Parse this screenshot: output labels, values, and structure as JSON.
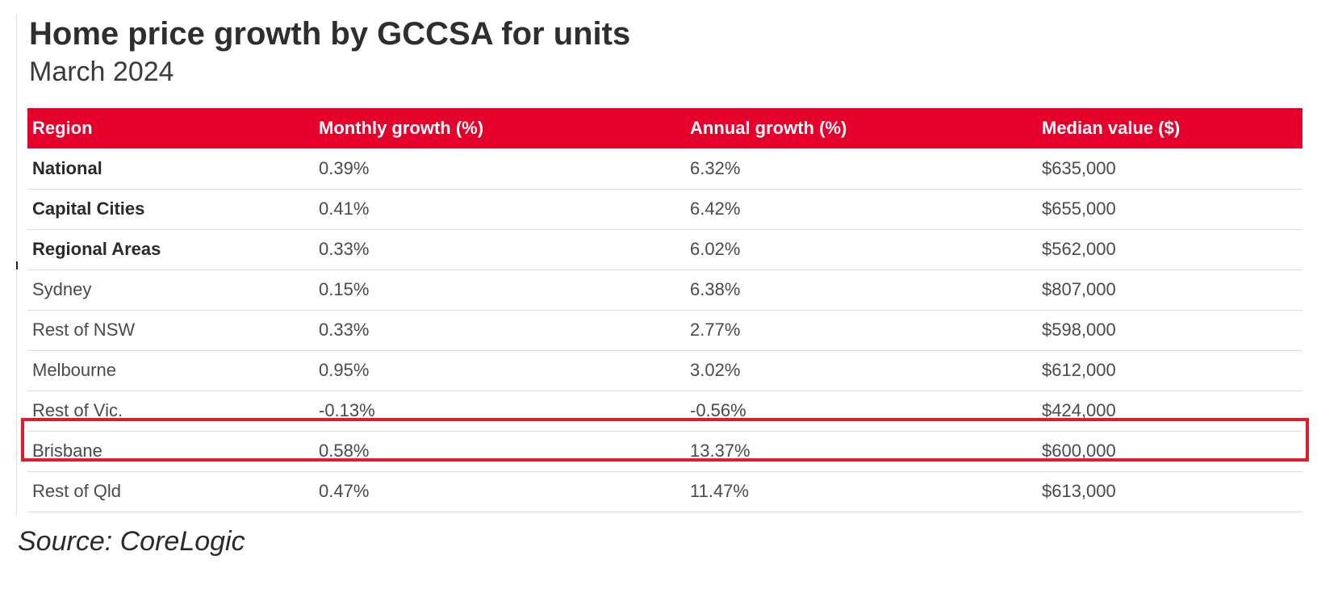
{
  "chart_data": {
    "type": "table",
    "title": "Home price growth by GCCSA for units",
    "subtitle": "March 2024",
    "columns": [
      "Region",
      "Monthly growth (%)",
      "Annual growth (%)",
      "Median value ($)"
    ],
    "rows": [
      {
        "region": "National",
        "monthly": "0.39%",
        "annual": "6.32%",
        "median": "$635,000",
        "bold": true,
        "highlight": false
      },
      {
        "region": "Capital Cities",
        "monthly": "0.41%",
        "annual": "6.42%",
        "median": "$655,000",
        "bold": true,
        "highlight": false
      },
      {
        "region": "Regional Areas",
        "monthly": "0.33%",
        "annual": "6.02%",
        "median": "$562,000",
        "bold": true,
        "highlight": false
      },
      {
        "region": "Sydney",
        "monthly": "0.15%",
        "annual": "6.38%",
        "median": "$807,000",
        "bold": false,
        "highlight": false
      },
      {
        "region": "Rest of NSW",
        "monthly": "0.33%",
        "annual": "2.77%",
        "median": "$598,000",
        "bold": false,
        "highlight": false
      },
      {
        "region": "Melbourne",
        "monthly": "0.95%",
        "annual": "3.02%",
        "median": "$612,000",
        "bold": false,
        "highlight": false
      },
      {
        "region": "Rest of Vic.",
        "monthly": "-0.13%",
        "annual": "-0.56%",
        "median": "$424,000",
        "bold": false,
        "highlight": false
      },
      {
        "region": "Brisbane",
        "monthly": "0.58%",
        "annual": "13.37%",
        "median": "$600,000",
        "bold": false,
        "highlight": true
      },
      {
        "region": "Rest of Qld",
        "monthly": "0.47%",
        "annual": "11.47%",
        "median": "$613,000",
        "bold": false,
        "highlight": false
      }
    ],
    "source": "Source: CoreLogic",
    "header_color": "#e4002b",
    "highlight_color": "#e11b2b"
  }
}
